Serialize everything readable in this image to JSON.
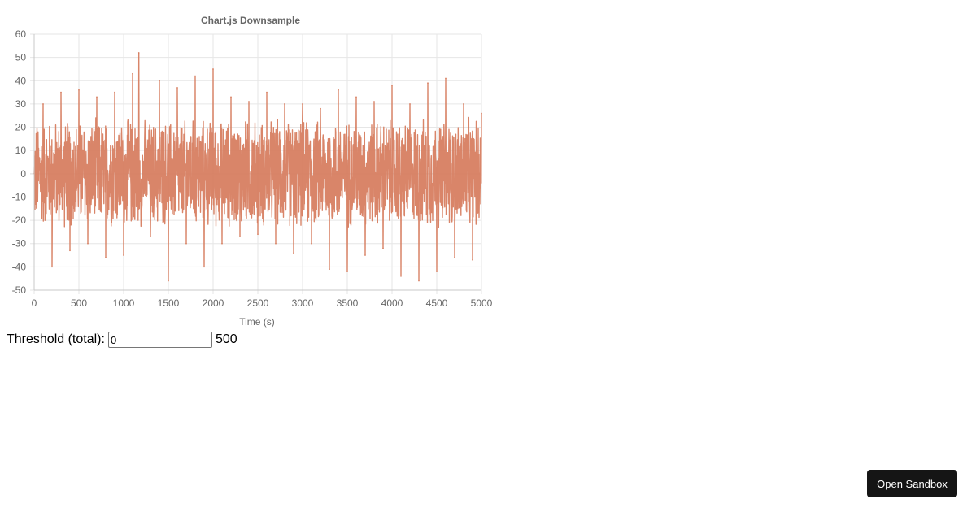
{
  "chart_data": {
    "type": "line",
    "title": "Chart.js Downsample",
    "xlabel": "Time (s)",
    "ylabel": "",
    "xlim": [
      0,
      5000
    ],
    "ylim": [
      -50,
      60
    ],
    "x_ticks": [
      "0",
      "500",
      "1000",
      "1500",
      "2000",
      "2500",
      "3000",
      "3500",
      "4000",
      "4500",
      "5000"
    ],
    "y_ticks": [
      "60",
      "50",
      "40",
      "30",
      "20",
      "10",
      "0",
      "-10",
      "-20",
      "-30",
      "-40",
      "-50"
    ],
    "grid": true,
    "series": [
      {
        "color": "#d67b5c",
        "x": [
          0,
          100,
          200,
          300,
          400,
          500,
          600,
          700,
          800,
          900,
          1000,
          1100,
          1170,
          1300,
          1400,
          1500,
          1600,
          1700,
          1800,
          1900,
          2000,
          2100,
          2200,
          2300,
          2400,
          2500,
          2600,
          2700,
          2800,
          2900,
          3000,
          3100,
          3200,
          3300,
          3400,
          3500,
          3600,
          3700,
          3800,
          3900,
          4000,
          4100,
          4200,
          4300,
          4400,
          4500,
          4600,
          4700,
          4800,
          4900,
          5000
        ],
        "y": [
          0,
          30,
          -40,
          35,
          -33,
          36,
          -30,
          33,
          -36,
          35,
          -35,
          43,
          52,
          -27,
          40,
          -46,
          37,
          -30,
          42,
          -40,
          45,
          -30,
          33,
          -27,
          31,
          -26,
          35,
          -30,
          30,
          -34,
          30,
          -30,
          28,
          -41,
          36,
          -42,
          33,
          -35,
          31,
          -32,
          38,
          -44,
          30,
          -46,
          39,
          -42,
          41,
          -36,
          30,
          -37,
          26
        ]
      }
    ]
  },
  "controls": {
    "threshold_label": "Threshold (total):",
    "threshold_value": "0",
    "threshold_max": "500"
  },
  "sandbox": {
    "label": "Open Sandbox"
  }
}
